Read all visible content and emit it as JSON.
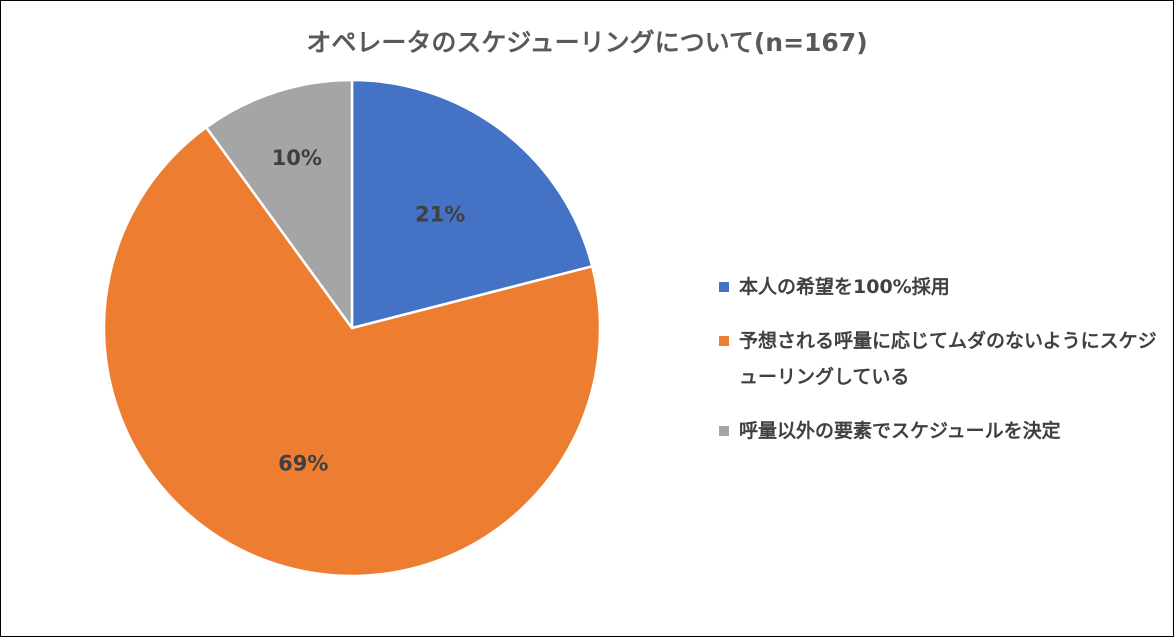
{
  "chart_data": {
    "type": "pie",
    "title": "オペレータのスケジューリングについて(n=167)",
    "categories": [
      "本人の希望を100%採用",
      "予想される呼量に応じてムダのないようにスケジューリングしている",
      "呼量以外の要素でスケジュールを決定"
    ],
    "values": [
      21,
      69,
      10
    ],
    "data_labels": [
      "21%",
      "69%",
      "10%"
    ],
    "colors": [
      "#4472C4",
      "#ED7D31",
      "#A5A5A5"
    ],
    "start_angle_deg": 0,
    "direction": "clockwise",
    "legend_position": "right"
  },
  "legend": {
    "items": [
      {
        "label": "本人の希望を100%採用",
        "color": "#4472C4"
      },
      {
        "label": "予想される呼量に応じてムダのないようにスケジューリングしている",
        "color": "#ED7D31"
      },
      {
        "label": "呼量以外の要素でスケジュールを決定",
        "color": "#A5A5A5"
      }
    ]
  }
}
